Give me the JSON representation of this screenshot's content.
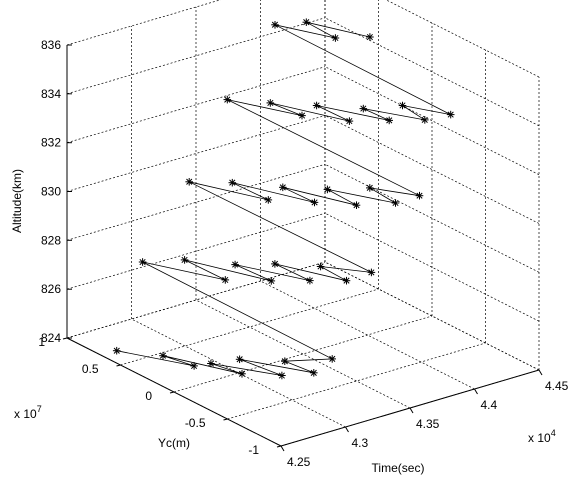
{
  "chart_data": {
    "type": "scatter",
    "projection": "3d",
    "title": "",
    "zlabel": "Altitude(km)",
    "ylabel": "Yc(m)",
    "xlabel": "Time(sec)",
    "x_multiplier": "x 10",
    "x_exponent": "4",
    "y_multiplier": "x 10",
    "y_exponent": "7",
    "xlim": [
      42500,
      44500
    ],
    "ylim": [
      -10000000,
      10000000
    ],
    "zlim": [
      824,
      836
    ],
    "x_ticks": [
      42500,
      43000,
      43500,
      44000,
      44500
    ],
    "x_tick_labels": [
      "4.25",
      "4.3",
      "4.35",
      "4.4",
      "4.45"
    ],
    "y_ticks": [
      -10000000,
      -5000000,
      0,
      5000000,
      10000000
    ],
    "y_tick_labels": [
      "-1",
      "-0.5",
      "0",
      "0.5",
      "1"
    ],
    "z_ticks": [
      824,
      826,
      828,
      830,
      832,
      834,
      836
    ],
    "z_tick_labels": [
      "824",
      "826",
      "828",
      "830",
      "832",
      "834",
      "836"
    ],
    "grid": true,
    "marker": "*",
    "connected": true,
    "series": [
      {
        "values": [
          {
            "x": 42620,
            "y": 6800000,
            "z": 824.0
          },
          {
            "x": 42780,
            "y": 1500000,
            "z": 824.3
          },
          {
            "x": 42680,
            "y": 3200000,
            "z": 824.5
          },
          {
            "x": 42820,
            "y": -2500000,
            "z": 824.8
          },
          {
            "x": 42720,
            "y": -800000,
            "z": 825.0
          },
          {
            "x": 42880,
            "y": -5500000,
            "z": 825.3
          },
          {
            "x": 42760,
            "y": -3000000,
            "z": 825.6
          },
          {
            "x": 42920,
            "y": -8000000,
            "z": 825.9
          },
          {
            "x": 42820,
            "y": -6500000,
            "z": 826.2
          },
          {
            "x": 42980,
            "y": -9000000,
            "z": 826.6
          },
          {
            "x": 42920,
            "y": 8000000,
            "z": 826.9
          },
          {
            "x": 43080,
            "y": 2200000,
            "z": 827.2
          },
          {
            "x": 42980,
            "y": 4800000,
            "z": 827.6
          },
          {
            "x": 43130,
            "y": -1500000,
            "z": 827.9
          },
          {
            "x": 43040,
            "y": 800000,
            "z": 828.2
          },
          {
            "x": 43180,
            "y": -4500000,
            "z": 828.5
          },
          {
            "x": 43100,
            "y": -2200000,
            "z": 828.8
          },
          {
            "x": 43240,
            "y": -7200000,
            "z": 829.0
          },
          {
            "x": 43180,
            "y": -5500000,
            "z": 829.3
          },
          {
            "x": 43300,
            "y": -8800000,
            "z": 829.6
          },
          {
            "x": 43240,
            "y": 7500000,
            "z": 829.8
          },
          {
            "x": 43380,
            "y": 1800000,
            "z": 830.1
          },
          {
            "x": 43300,
            "y": 4200000,
            "z": 830.4
          },
          {
            "x": 43440,
            "y": -1800000,
            "z": 830.7
          },
          {
            "x": 43360,
            "y": 200000,
            "z": 831.0
          },
          {
            "x": 43500,
            "y": -5000000,
            "z": 831.2
          },
          {
            "x": 43440,
            "y": -3000000,
            "z": 831.5
          },
          {
            "x": 43570,
            "y": -7800000,
            "z": 831.8
          },
          {
            "x": 43520,
            "y": -6000000,
            "z": 832.1
          },
          {
            "x": 43640,
            "y": -9200000,
            "z": 832.3
          },
          {
            "x": 43560,
            "y": 7800000,
            "z": 832.6
          },
          {
            "x": 43700,
            "y": 2500000,
            "z": 832.9
          },
          {
            "x": 43620,
            "y": 4500000,
            "z": 833.1
          },
          {
            "x": 43760,
            "y": -1200000,
            "z": 833.4
          },
          {
            "x": 43680,
            "y": 900000,
            "z": 833.7
          },
          {
            "x": 43820,
            "y": -4200000,
            "z": 834.0
          },
          {
            "x": 43760,
            "y": -2500000,
            "z": 834.2
          },
          {
            "x": 43880,
            "y": -6800000,
            "z": 834.5
          },
          {
            "x": 43840,
            "y": -5200000,
            "z": 834.8
          },
          {
            "x": 43940,
            "y": -8500000,
            "z": 835.0
          },
          {
            "x": 43880,
            "y": 7200000,
            "z": 835.3
          },
          {
            "x": 44000,
            "y": 3000000,
            "z": 835.5
          },
          {
            "x": 43940,
            "y": 5000000,
            "z": 835.8
          },
          {
            "x": 44060,
            "y": 500000,
            "z": 836.0
          }
        ]
      }
    ]
  }
}
